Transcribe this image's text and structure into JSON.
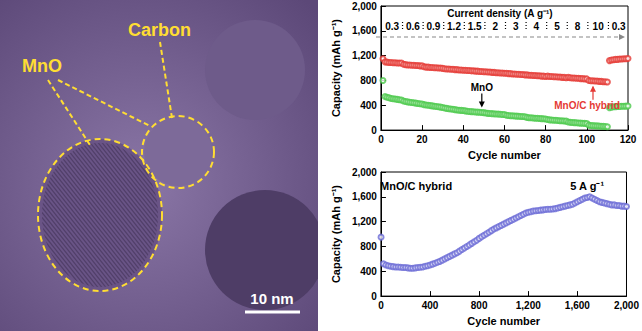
{
  "image": {
    "labels": [
      "MnO",
      "Carbon"
    ],
    "scale_bar": "10 nm"
  },
  "chart_data": [
    {
      "type": "scatter",
      "annotations": {
        "title": "Current density (A g⁻¹)",
        "segments": [
          {
            "label": "0.3",
            "from": 1,
            "to": 10
          },
          {
            "label": "0.6",
            "from": 11,
            "to": 20
          },
          {
            "label": "0.9",
            "from": 21,
            "to": 30
          },
          {
            "label": "1.2",
            "from": 31,
            "to": 40
          },
          {
            "label": "1.5",
            "from": 41,
            "to": 50
          },
          {
            "label": "2",
            "from": 51,
            "to": 60
          },
          {
            "label": "3",
            "from": 61,
            "to": 70
          },
          {
            "label": "4",
            "from": 71,
            "to": 80
          },
          {
            "label": "5",
            "from": 81,
            "to": 90
          },
          {
            "label": "8",
            "from": 91,
            "to": 100
          },
          {
            "label": "10",
            "from": 101,
            "to": 110
          },
          {
            "label": "0.3",
            "from": 111,
            "to": 120
          }
        ]
      },
      "x_label": "Cycle number",
      "y_label": "Capacity (mAh g⁻¹)",
      "x": [
        1,
        2,
        3,
        4,
        5,
        6,
        7,
        8,
        9,
        10,
        11,
        12,
        13,
        14,
        15,
        16,
        17,
        18,
        19,
        20,
        21,
        22,
        23,
        24,
        25,
        26,
        27,
        28,
        29,
        30,
        31,
        32,
        33,
        34,
        35,
        36,
        37,
        38,
        39,
        40,
        41,
        42,
        43,
        44,
        45,
        46,
        47,
        48,
        49,
        50,
        51,
        52,
        53,
        54,
        55,
        56,
        57,
        58,
        59,
        60,
        61,
        62,
        63,
        64,
        65,
        66,
        67,
        68,
        69,
        70,
        71,
        72,
        73,
        74,
        75,
        76,
        77,
        78,
        79,
        80,
        81,
        82,
        83,
        84,
        85,
        86,
        87,
        88,
        89,
        90,
        91,
        92,
        93,
        94,
        95,
        96,
        97,
        98,
        99,
        100,
        101,
        102,
        103,
        104,
        105,
        106,
        107,
        108,
        109,
        110,
        111,
        112,
        113,
        114,
        115,
        116,
        117,
        118,
        119,
        120
      ],
      "series": [
        {
          "name": "MnO/C hybrid",
          "color": "#e53935",
          "marker": "circle",
          "values": [
            1150,
            1100,
            1095,
            1090,
            1090,
            1085,
            1085,
            1080,
            1080,
            1080,
            1060,
            1055,
            1050,
            1050,
            1045,
            1045,
            1040,
            1040,
            1035,
            1035,
            1020,
            1015,
            1015,
            1010,
            1010,
            1005,
            1005,
            1000,
            1000,
            995,
            990,
            985,
            985,
            980,
            980,
            975,
            975,
            970,
            970,
            965,
            965,
            960,
            960,
            955,
            955,
            950,
            950,
            945,
            945,
            940,
            940,
            935,
            935,
            930,
            930,
            925,
            925,
            920,
            920,
            915,
            915,
            910,
            910,
            905,
            905,
            900,
            900,
            895,
            895,
            890,
            890,
            885,
            885,
            880,
            880,
            875,
            875,
            870,
            870,
            865,
            870,
            865,
            865,
            860,
            860,
            855,
            855,
            850,
            850,
            845,
            850,
            845,
            840,
            840,
            835,
            835,
            830,
            830,
            825,
            825,
            800,
            795,
            795,
            790,
            790,
            785,
            785,
            780,
            780,
            775,
            1120,
            1130,
            1135,
            1140,
            1140,
            1145,
            1145,
            1150,
            1150,
            1155
          ]
        },
        {
          "name": "MnO",
          "color": "#4cc94c",
          "marker": "circle",
          "values": [
            800,
            540,
            530,
            520,
            510,
            505,
            500,
            495,
            490,
            485,
            470,
            460,
            455,
            450,
            445,
            440,
            435,
            430,
            425,
            420,
            410,
            405,
            400,
            395,
            390,
            385,
            380,
            375,
            370,
            365,
            355,
            350,
            345,
            340,
            335,
            330,
            325,
            320,
            318,
            315,
            310,
            305,
            300,
            298,
            295,
            292,
            290,
            288,
            285,
            282,
            275,
            270,
            268,
            265,
            262,
            260,
            258,
            255,
            252,
            250,
            240,
            235,
            232,
            230,
            228,
            225,
            222,
            220,
            218,
            215,
            205,
            200,
            198,
            195,
            192,
            190,
            188,
            185,
            182,
            180,
            170,
            165,
            162,
            160,
            158,
            155,
            152,
            150,
            148,
            145,
            130,
            125,
            122,
            120,
            118,
            115,
            112,
            110,
            108,
            105,
            80,
            75,
            72,
            70,
            68,
            65,
            62,
            60,
            58,
            55,
            360,
            370,
            375,
            378,
            380,
            382,
            384,
            385,
            386,
            388
          ]
        }
      ],
      "xlim": [
        0,
        120
      ],
      "xticks": [
        0,
        20,
        40,
        60,
        80,
        100,
        120
      ],
      "ylim": [
        0,
        2000
      ],
      "yticks": [
        0,
        400,
        800,
        1200,
        1600,
        2000
      ],
      "grid": false
    },
    {
      "type": "scatter",
      "annotations": {
        "text": "5 A g⁻¹"
      },
      "x_label": "Cycle number",
      "y_label": "Capacity (mAh g⁻¹)",
      "x": [
        1,
        20,
        40,
        60,
        80,
        100,
        120,
        140,
        160,
        180,
        200,
        220,
        240,
        260,
        280,
        300,
        320,
        340,
        360,
        380,
        400,
        420,
        440,
        460,
        480,
        500,
        520,
        540,
        560,
        580,
        600,
        620,
        640,
        660,
        680,
        700,
        720,
        740,
        760,
        780,
        800,
        820,
        840,
        860,
        880,
        900,
        920,
        940,
        960,
        980,
        1000,
        1020,
        1040,
        1060,
        1080,
        1100,
        1120,
        1140,
        1160,
        1180,
        1200,
        1220,
        1240,
        1260,
        1280,
        1300,
        1320,
        1340,
        1360,
        1380,
        1400,
        1420,
        1440,
        1460,
        1480,
        1500,
        1520,
        1540,
        1560,
        1580,
        1600,
        1620,
        1640,
        1660,
        1680,
        1700,
        1720,
        1740,
        1760,
        1780,
        1800,
        1820,
        1840,
        1860,
        1880,
        1900,
        1920,
        1940,
        1960,
        1980,
        2000
      ],
      "series": [
        {
          "name": "MnO/C hybrid",
          "color": "#6b6bd6",
          "marker": "circle",
          "values": [
            950,
            520,
            500,
            490,
            480,
            475,
            470,
            470,
            465,
            460,
            460,
            455,
            450,
            450,
            455,
            460,
            465,
            470,
            480,
            490,
            500,
            515,
            530,
            545,
            560,
            580,
            600,
            620,
            640,
            660,
            680,
            700,
            725,
            750,
            775,
            800,
            825,
            850,
            875,
            900,
            930,
            955,
            980,
            1005,
            1030,
            1055,
            1080,
            1100,
            1120,
            1140,
            1160,
            1180,
            1200,
            1220,
            1240,
            1260,
            1280,
            1300,
            1320,
            1340,
            1350,
            1360,
            1370,
            1375,
            1380,
            1385,
            1390,
            1395,
            1400,
            1400,
            1405,
            1410,
            1420,
            1430,
            1440,
            1450,
            1460,
            1470,
            1480,
            1500,
            1520,
            1540,
            1560,
            1580,
            1590,
            1600,
            1580,
            1560,
            1540,
            1520,
            1510,
            1500,
            1490,
            1480,
            1470,
            1470,
            1460,
            1460,
            1450,
            1450,
            1445
          ]
        }
      ],
      "xlim": [
        0,
        2000
      ],
      "xticks": [
        0,
        400,
        800,
        1200,
        1600,
        2000
      ],
      "ylim": [
        0,
        2000
      ],
      "yticks": [
        0,
        400,
        800,
        1200,
        1600,
        2000
      ],
      "grid": false
    }
  ]
}
